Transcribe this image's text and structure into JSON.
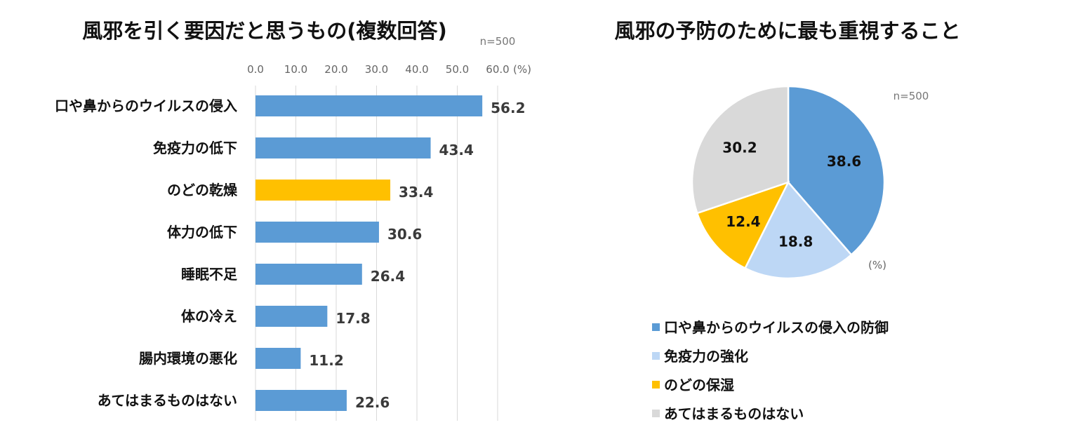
{
  "chart_data": [
    {
      "type": "bar",
      "orientation": "horizontal",
      "title": "風邪を引く要因だと思うもの(複数回答)",
      "note": "n=500",
      "unit_label": "(%)",
      "categories": [
        "口や鼻からのウイルスの侵入",
        "免疫力の低下",
        "のどの乾燥",
        "体力の低下",
        "睡眠不足",
        "体の冷え",
        "腸内環境の悪化",
        "あてはまるものはない"
      ],
      "values": [
        56.2,
        43.4,
        33.4,
        30.6,
        26.4,
        17.8,
        11.2,
        22.6
      ],
      "highlight_index": 2,
      "xlim": [
        0,
        60
      ],
      "ticks": [
        "0.0",
        "10.0",
        "20.0",
        "30.0",
        "40.0",
        "50.0",
        "60.0"
      ],
      "grid": true,
      "colors": {
        "bar": "#5b9bd5",
        "highlight": "#ffc000",
        "grid": "#d9d9d9"
      }
    },
    {
      "type": "pie",
      "title": "風邪の予防のために最も重視すること",
      "note": "n=500",
      "unit_label": "(%)",
      "categories": [
        "口や鼻からのウイルスの侵入の防御",
        "免疫力の強化",
        "のどの保湿",
        "あてはまるものはない"
      ],
      "values": [
        38.6,
        18.8,
        12.4,
        30.2
      ],
      "labels": [
        "38.6",
        "18.8",
        "12.4",
        "30.2"
      ],
      "colors": [
        "#5b9bd5",
        "#bdd7f5",
        "#ffc000",
        "#d9d9d9"
      ],
      "legend": "bottom"
    }
  ]
}
